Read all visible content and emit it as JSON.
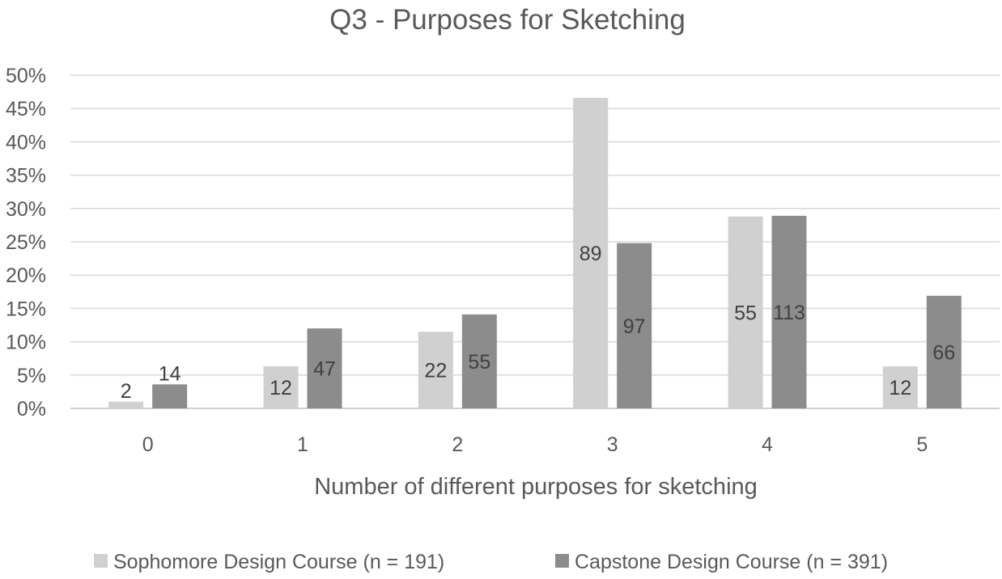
{
  "chart_data": {
    "type": "bar",
    "title": "Q3 - Purposes for Sketching",
    "xlabel": "Number of different purposes for sketching",
    "ylabel": "",
    "categories": [
      "0",
      "1",
      "2",
      "3",
      "4",
      "5"
    ],
    "ylim": [
      0,
      50
    ],
    "yticks": [
      "0%",
      "5%",
      "10%",
      "15%",
      "20%",
      "25%",
      "30%",
      "35%",
      "40%",
      "45%",
      "50%"
    ],
    "grid": true,
    "legend_position": "bottom",
    "series": [
      {
        "name": "Sophomore Design Course (n = 191)",
        "color": "#d0d0d0",
        "values": [
          1.0,
          6.3,
          11.5,
          46.6,
          28.8,
          6.3
        ],
        "labels": [
          "2",
          "12",
          "22",
          "89",
          "55",
          "12"
        ]
      },
      {
        "name": "Capstone Design Course (n = 391)",
        "color": "#8c8c8c",
        "values": [
          3.6,
          12.0,
          14.1,
          24.8,
          28.9,
          16.9
        ],
        "labels": [
          "14",
          "47",
          "55",
          "97",
          "113",
          "66"
        ]
      }
    ]
  }
}
